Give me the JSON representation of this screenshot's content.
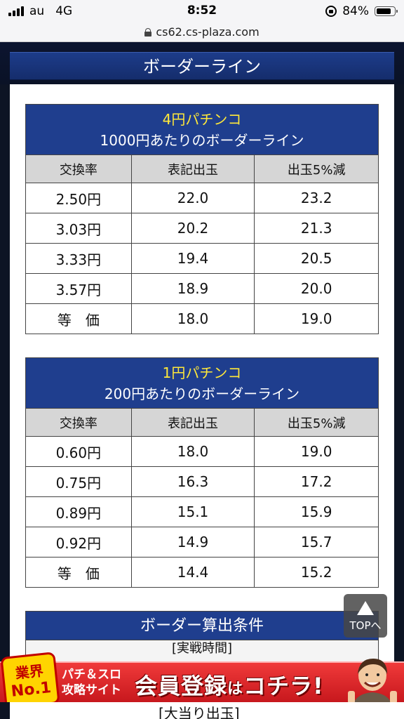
{
  "status": {
    "carrier": "au",
    "network": "4G",
    "time": "8:52",
    "battery": "84%",
    "battery_level": 0.84
  },
  "browser": {
    "url": "cs62.cs-plaza.com"
  },
  "header": {
    "title": "ボーダーライン"
  },
  "tables": [
    {
      "title1": "4円パチンコ",
      "title2": "1000円あたりのボーダーライン",
      "columns": [
        "交換率",
        "表記出玉",
        "出玉5%減"
      ],
      "rows": [
        [
          "2.50円",
          "22.0",
          "23.2"
        ],
        [
          "3.03円",
          "20.2",
          "21.3"
        ],
        [
          "3.33円",
          "19.4",
          "20.5"
        ],
        [
          "3.57円",
          "18.9",
          "20.0"
        ],
        [
          "等　価",
          "18.0",
          "19.0"
        ]
      ]
    },
    {
      "title1": "1円パチンコ",
      "title2": "200円あたりのボーダーライン",
      "columns": [
        "交換率",
        "表記出玉",
        "出玉5%減"
      ],
      "rows": [
        [
          "0.60円",
          "18.0",
          "19.0"
        ],
        [
          "0.75円",
          "16.3",
          "17.2"
        ],
        [
          "0.89円",
          "15.1",
          "15.9"
        ],
        [
          "0.92円",
          "14.9",
          "15.7"
        ],
        [
          "等　価",
          "14.4",
          "15.2"
        ]
      ]
    }
  ],
  "calc": {
    "title": "ボーダー算出条件",
    "line1": "[実戦時間]",
    "line2": "[大当り出玉]"
  },
  "top_button": {
    "label": "TOPへ"
  },
  "ad": {
    "badge_line1": "業界",
    "badge_line2": "No.1",
    "sub_line1": "パチ＆スロ",
    "sub_line2": "攻略サイト",
    "main_text": "会員登録",
    "main_small": "は",
    "main_text2": "コチラ!"
  }
}
